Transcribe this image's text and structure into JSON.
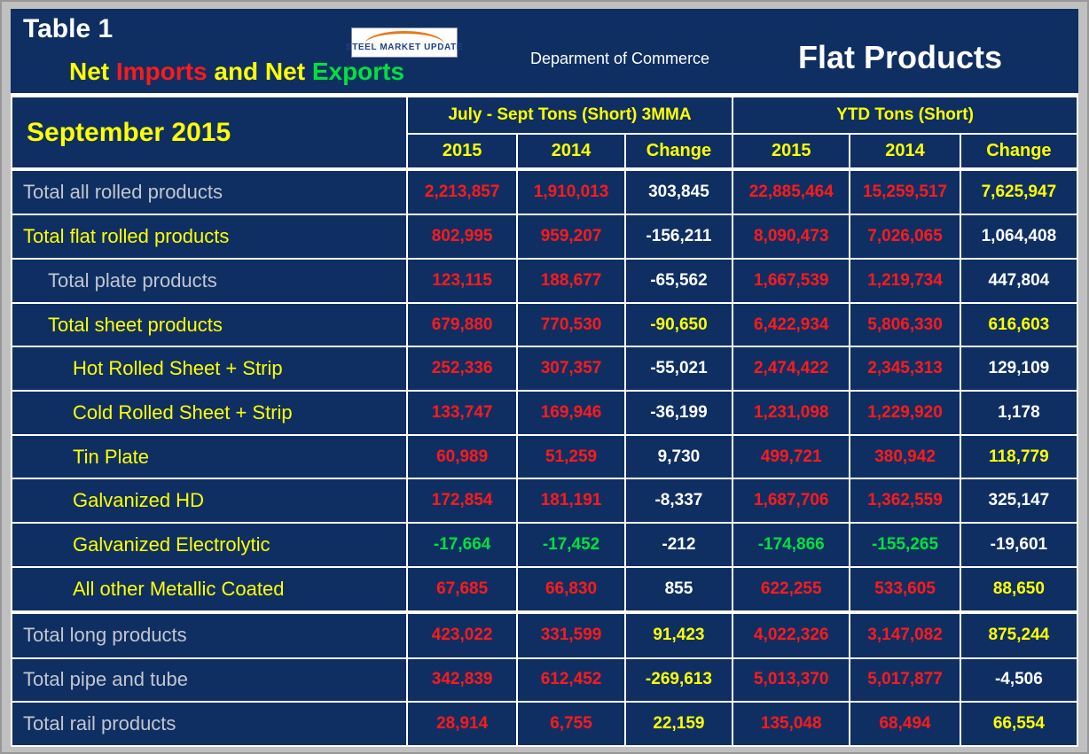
{
  "palette": {
    "red": "#ff1a1a",
    "green": "#00e13c",
    "yellow": "#ffff00",
    "white": "#ffffff",
    "gray": "#c2c6ce"
  },
  "header": {
    "table_label": "Table 1",
    "title_parts": [
      {
        "text": "Net ",
        "color": "yellow"
      },
      {
        "text": "Imports",
        "color": "red"
      },
      {
        "text": " and Net ",
        "color": "yellow"
      },
      {
        "text": "Exports",
        "color": "green"
      }
    ],
    "logo_text": "STEEL MARKET UPDATE",
    "agency": "Deparment of Commerce",
    "product": "Flat Products"
  },
  "table": {
    "month_label": "September 2015",
    "group1_label": "July - Sept Tons (Short) 3MMA",
    "group2_label": "YTD Tons (Short)",
    "subheaders": [
      "2015",
      "2014",
      "Change",
      "2015",
      "2014",
      "Change"
    ],
    "rows": [
      {
        "label": "Total all rolled products",
        "label_color": "gray",
        "indent": 0,
        "thick_top": true,
        "cells": [
          {
            "v": "2,213,857",
            "c": "red"
          },
          {
            "v": "1,910,013",
            "c": "red"
          },
          {
            "v": "303,845",
            "c": "white"
          },
          {
            "v": "22,885,464",
            "c": "red"
          },
          {
            "v": "15,259,517",
            "c": "red"
          },
          {
            "v": "7,625,947",
            "c": "yellow"
          }
        ]
      },
      {
        "label": "Total flat rolled products",
        "label_color": "yellow",
        "indent": 0,
        "thick_top": false,
        "cells": [
          {
            "v": "802,995",
            "c": "red"
          },
          {
            "v": "959,207",
            "c": "red"
          },
          {
            "v": "-156,211",
            "c": "white"
          },
          {
            "v": "8,090,473",
            "c": "red"
          },
          {
            "v": "7,026,065",
            "c": "red"
          },
          {
            "v": "1,064,408",
            "c": "white"
          }
        ]
      },
      {
        "label": "Total plate products",
        "label_color": "gray",
        "indent": 1,
        "thick_top": false,
        "cells": [
          {
            "v": "123,115",
            "c": "red"
          },
          {
            "v": "188,677",
            "c": "red"
          },
          {
            "v": "-65,562",
            "c": "white"
          },
          {
            "v": "1,667,539",
            "c": "red"
          },
          {
            "v": "1,219,734",
            "c": "red"
          },
          {
            "v": "447,804",
            "c": "white"
          }
        ]
      },
      {
        "label": "Total sheet products",
        "label_color": "yellow",
        "indent": 1,
        "thick_top": false,
        "cells": [
          {
            "v": "679,880",
            "c": "red"
          },
          {
            "v": "770,530",
            "c": "red"
          },
          {
            "v": "-90,650",
            "c": "yellow"
          },
          {
            "v": "6,422,934",
            "c": "red"
          },
          {
            "v": "5,806,330",
            "c": "red"
          },
          {
            "v": "616,603",
            "c": "yellow"
          }
        ]
      },
      {
        "label": "Hot Rolled Sheet + Strip",
        "label_color": "yellow",
        "indent": 2,
        "thick_top": false,
        "cells": [
          {
            "v": "252,336",
            "c": "red"
          },
          {
            "v": "307,357",
            "c": "red"
          },
          {
            "v": "-55,021",
            "c": "white"
          },
          {
            "v": "2,474,422",
            "c": "red"
          },
          {
            "v": "2,345,313",
            "c": "red"
          },
          {
            "v": "129,109",
            "c": "white"
          }
        ]
      },
      {
        "label": "Cold Rolled Sheet + Strip",
        "label_color": "yellow",
        "indent": 2,
        "thick_top": false,
        "cells": [
          {
            "v": "133,747",
            "c": "red"
          },
          {
            "v": "169,946",
            "c": "red"
          },
          {
            "v": "-36,199",
            "c": "white"
          },
          {
            "v": "1,231,098",
            "c": "red"
          },
          {
            "v": "1,229,920",
            "c": "red"
          },
          {
            "v": "1,178",
            "c": "white"
          }
        ]
      },
      {
        "label": "Tin Plate",
        "label_color": "yellow",
        "indent": 2,
        "thick_top": false,
        "cells": [
          {
            "v": "60,989",
            "c": "red"
          },
          {
            "v": "51,259",
            "c": "red"
          },
          {
            "v": "9,730",
            "c": "white"
          },
          {
            "v": "499,721",
            "c": "red"
          },
          {
            "v": "380,942",
            "c": "red"
          },
          {
            "v": "118,779",
            "c": "yellow"
          }
        ]
      },
      {
        "label": "Galvanized HD",
        "label_color": "yellow",
        "indent": 2,
        "thick_top": false,
        "cells": [
          {
            "v": "172,854",
            "c": "red"
          },
          {
            "v": "181,191",
            "c": "red"
          },
          {
            "v": "-8,337",
            "c": "white"
          },
          {
            "v": "1,687,706",
            "c": "red"
          },
          {
            "v": "1,362,559",
            "c": "red"
          },
          {
            "v": "325,147",
            "c": "white"
          }
        ]
      },
      {
        "label": "Galvanized Electrolytic",
        "label_color": "yellow",
        "indent": 2,
        "thick_top": false,
        "cells": [
          {
            "v": "-17,664",
            "c": "green"
          },
          {
            "v": "-17,452",
            "c": "green"
          },
          {
            "v": "-212",
            "c": "white"
          },
          {
            "v": "-174,866",
            "c": "green"
          },
          {
            "v": "-155,265",
            "c": "green"
          },
          {
            "v": "-19,601",
            "c": "white"
          }
        ]
      },
      {
        "label": "All other Metallic Coated",
        "label_color": "yellow",
        "indent": 2,
        "thick_top": false,
        "cells": [
          {
            "v": "67,685",
            "c": "red"
          },
          {
            "v": "66,830",
            "c": "red"
          },
          {
            "v": "855",
            "c": "white"
          },
          {
            "v": "622,255",
            "c": "red"
          },
          {
            "v": "533,605",
            "c": "red"
          },
          {
            "v": "88,650",
            "c": "yellow"
          }
        ]
      },
      {
        "label": "Total long products",
        "label_color": "gray",
        "indent": 0,
        "thick_top": true,
        "cells": [
          {
            "v": "423,022",
            "c": "red"
          },
          {
            "v": "331,599",
            "c": "red"
          },
          {
            "v": "91,423",
            "c": "yellow"
          },
          {
            "v": "4,022,326",
            "c": "red"
          },
          {
            "v": "3,147,082",
            "c": "red"
          },
          {
            "v": "875,244",
            "c": "yellow"
          }
        ]
      },
      {
        "label": "Total pipe and tube",
        "label_color": "gray",
        "indent": 0,
        "thick_top": false,
        "cells": [
          {
            "v": "342,839",
            "c": "red"
          },
          {
            "v": "612,452",
            "c": "red"
          },
          {
            "v": "-269,613",
            "c": "yellow"
          },
          {
            "v": "5,013,370",
            "c": "red"
          },
          {
            "v": "5,017,877",
            "c": "red"
          },
          {
            "v": "-4,506",
            "c": "white"
          }
        ]
      },
      {
        "label": "Total rail products",
        "label_color": "gray",
        "indent": 0,
        "thick_top": false,
        "cells": [
          {
            "v": "28,914",
            "c": "red"
          },
          {
            "v": "6,755",
            "c": "red"
          },
          {
            "v": "22,159",
            "c": "yellow"
          },
          {
            "v": "135,048",
            "c": "red"
          },
          {
            "v": "68,494",
            "c": "red"
          },
          {
            "v": "66,554",
            "c": "yellow"
          }
        ]
      }
    ]
  }
}
